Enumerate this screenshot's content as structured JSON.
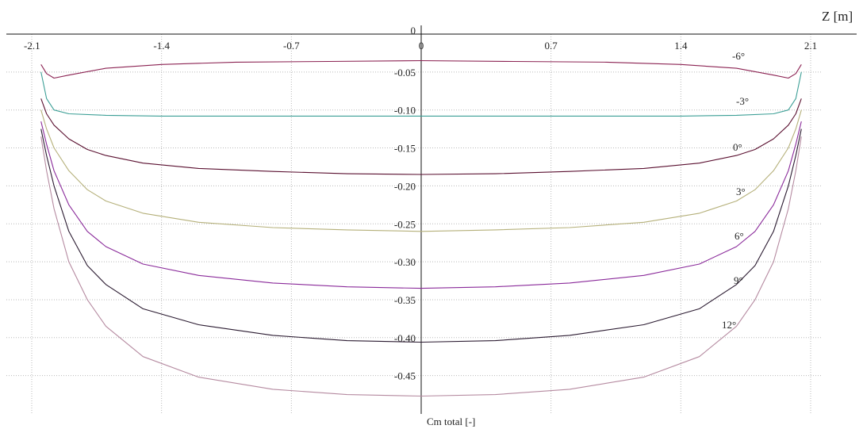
{
  "chart_data": {
    "type": "line",
    "xlabel": "Z [m]",
    "ylabel": "Cm total [-]",
    "xlim": [
      -2.1,
      2.1
    ],
    "ylim": [
      -0.5,
      0
    ],
    "grid": true,
    "x_ticks": [
      "-2.1",
      "-1.4",
      "-0.7",
      "0",
      "0.7",
      "1.4",
      "2.1"
    ],
    "x_tick_values": [
      -2.1,
      -1.4,
      -0.7,
      0,
      0.7,
      1.4,
      2.1
    ],
    "y_ticks": [
      "0",
      "-0.05",
      "-0.10",
      "-0.15",
      "-0.20",
      "-0.25",
      "-0.30",
      "-0.35",
      "-0.40",
      "-0.45"
    ],
    "y_tick_values": [
      0,
      -0.05,
      -0.1,
      -0.15,
      -0.2,
      -0.25,
      -0.3,
      -0.35,
      -0.4,
      -0.45
    ],
    "series": [
      {
        "name": "-6°",
        "color": "#8b2252",
        "x": [
          -2.05,
          -2.02,
          -1.98,
          -1.9,
          -1.7,
          -1.4,
          -1.0,
          -0.5,
          0,
          0.5,
          1.0,
          1.4,
          1.7,
          1.9,
          1.98,
          2.02,
          2.05
        ],
        "y": [
          -0.04,
          -0.052,
          -0.058,
          -0.054,
          -0.045,
          -0.04,
          -0.037,
          -0.036,
          -0.035,
          -0.036,
          -0.037,
          -0.04,
          -0.045,
          -0.054,
          -0.058,
          -0.052,
          -0.04
        ]
      },
      {
        "name": "-3°",
        "color": "#3a9e95",
        "x": [
          -2.05,
          -2.02,
          -1.98,
          -1.9,
          -1.7,
          -1.4,
          -1.0,
          0,
          1.0,
          1.4,
          1.7,
          1.9,
          1.98,
          2.02,
          2.05
        ],
        "y": [
          -0.05,
          -0.085,
          -0.1,
          -0.105,
          -0.107,
          -0.108,
          -0.108,
          -0.108,
          -0.108,
          -0.108,
          -0.107,
          -0.105,
          -0.1,
          -0.085,
          -0.05
        ]
      },
      {
        "name": "0°",
        "color": "#5a1030",
        "x": [
          -2.05,
          -2.02,
          -1.98,
          -1.9,
          -1.8,
          -1.7,
          -1.5,
          -1.2,
          -0.8,
          -0.4,
          0,
          0.4,
          0.8,
          1.2,
          1.5,
          1.7,
          1.8,
          1.9,
          1.98,
          2.02,
          2.05
        ],
        "y": [
          -0.085,
          -0.105,
          -0.12,
          -0.138,
          -0.152,
          -0.16,
          -0.17,
          -0.177,
          -0.181,
          -0.184,
          -0.185,
          -0.184,
          -0.181,
          -0.177,
          -0.17,
          -0.16,
          -0.152,
          -0.138,
          -0.12,
          -0.105,
          -0.085
        ]
      },
      {
        "name": "3°",
        "color": "#b5b07a",
        "x": [
          -2.05,
          -2.02,
          -1.98,
          -1.9,
          -1.8,
          -1.7,
          -1.5,
          -1.2,
          -0.8,
          -0.4,
          0,
          0.4,
          0.8,
          1.2,
          1.5,
          1.7,
          1.8,
          1.9,
          1.98,
          2.02,
          2.05
        ],
        "y": [
          -0.1,
          -0.125,
          -0.15,
          -0.18,
          -0.205,
          -0.22,
          -0.236,
          -0.248,
          -0.255,
          -0.258,
          -0.26,
          -0.258,
          -0.255,
          -0.248,
          -0.236,
          -0.22,
          -0.205,
          -0.18,
          -0.15,
          -0.125,
          -0.1
        ]
      },
      {
        "name": "6°",
        "color": "#8a2a9a",
        "x": [
          -2.05,
          -2.02,
          -1.98,
          -1.9,
          -1.8,
          -1.7,
          -1.5,
          -1.2,
          -0.8,
          -0.4,
          0,
          0.4,
          0.8,
          1.2,
          1.5,
          1.7,
          1.8,
          1.9,
          1.98,
          2.02,
          2.05
        ],
        "y": [
          -0.115,
          -0.145,
          -0.18,
          -0.225,
          -0.26,
          -0.28,
          -0.303,
          -0.318,
          -0.328,
          -0.333,
          -0.335,
          -0.333,
          -0.328,
          -0.318,
          -0.303,
          -0.28,
          -0.26,
          -0.225,
          -0.18,
          -0.145,
          -0.115
        ]
      },
      {
        "name": "9°",
        "color": "#2a1a30",
        "x": [
          -2.05,
          -2.02,
          -1.98,
          -1.9,
          -1.8,
          -1.7,
          -1.5,
          -1.2,
          -0.8,
          -0.4,
          0,
          0.4,
          0.8,
          1.2,
          1.5,
          1.7,
          1.8,
          1.9,
          1.98,
          2.02,
          2.05
        ],
        "y": [
          -0.125,
          -0.16,
          -0.2,
          -0.26,
          -0.305,
          -0.33,
          -0.362,
          -0.383,
          -0.397,
          -0.404,
          -0.406,
          -0.404,
          -0.397,
          -0.383,
          -0.362,
          -0.33,
          -0.305,
          -0.26,
          -0.2,
          -0.16,
          -0.125
        ]
      },
      {
        "name": "12°",
        "color": "#b58aa0",
        "x": [
          -2.05,
          -2.02,
          -1.98,
          -1.9,
          -1.8,
          -1.7,
          -1.5,
          -1.2,
          -0.8,
          -0.4,
          0,
          0.4,
          0.8,
          1.2,
          1.5,
          1.7,
          1.8,
          1.9,
          1.98,
          2.02,
          2.05
        ],
        "y": [
          -0.135,
          -0.18,
          -0.23,
          -0.3,
          -0.35,
          -0.385,
          -0.425,
          -0.452,
          -0.468,
          -0.475,
          -0.477,
          -0.475,
          -0.468,
          -0.452,
          -0.425,
          -0.385,
          -0.35,
          -0.3,
          -0.23,
          -0.18,
          -0.135
        ]
      }
    ],
    "series_labels": [
      "-6°",
      "-3°",
      "0°",
      "3°",
      "6°",
      "9°",
      "12°"
    ]
  }
}
